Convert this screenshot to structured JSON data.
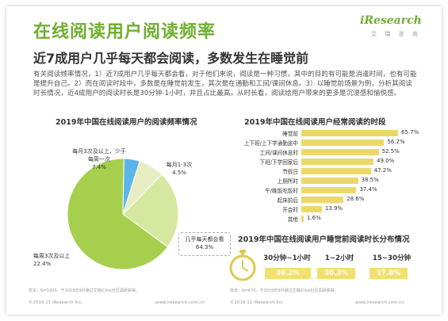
{
  "header": {
    "title": "在线阅读用户阅读频率",
    "subtitle": "近7成用户几乎每天都会阅读，多数发生在睡觉前",
    "logo_text": "iResearch",
    "logo_sub": "艾 瑞 咨 询"
  },
  "description": "有关阅读频率情况，1）近7成用户几乎每天都会看，对于他们来说，阅读是一种习惯，其中的目的有可能是消遣时间，也有可能是提升自己。2）而在阅读时段中，多数是在睡觉前发生，其次是在通勤和工间/课间休息。3）以睡觉前场景为例，分析其阅读时长情况，近4成用户的阅读时长是30分钟-1小时，并且占比最高，从时长看，阅读给用户带来的更多是沉浸感和愉悦感。",
  "left_footer": {
    "note": "样本：N=1000，于2019年9月通过艾瑞iClick社区调研获得。",
    "copyright": "©2019.11 iResearch Inc.",
    "site": "www.iresearch.com.cn"
  },
  "right_footer": {
    "note": "样本：N=670，于2019年9月通过艾瑞iClick社区调研获得。",
    "copyright": "©2019.11 iResearch Inc.",
    "site": "www.iresearch.com.cn"
  },
  "colors": {
    "title_green": "#6fae2e",
    "pie_main": "#a6cf4e",
    "pie_second": "#d6e8a0",
    "pie_third": "#e9edc4",
    "pie_fourth": "#5bb5e8",
    "bar_yellow": "#ecd86a"
  },
  "chart_data": [
    {
      "type": "pie",
      "title": "2019年中国在线阅读用户的阅读频率情况",
      "slices": [
        {
          "label": "几乎每天都会看",
          "value": 64.3,
          "display": "64.3%"
        },
        {
          "label": "每周3次及以上",
          "value": 22.4,
          "display": "22.4%"
        },
        {
          "label": "每月3次及以上，少于每周一次",
          "value": 7.4,
          "display": "7.4%"
        },
        {
          "label": "每月1-3次",
          "value": 4.5,
          "display": "4.5%"
        }
      ]
    },
    {
      "type": "bar",
      "orientation": "horizontal",
      "title": "2019年中国在线阅读用户经常阅读的时段",
      "categories": [
        "睡觉前",
        "上下班/上下学通勤途中",
        "工间/课间休息时",
        "下班/下学回家后",
        "节假日",
        "上厕所时",
        "午/晚饭吃饭时",
        "起床前后",
        "开会时",
        "其他"
      ],
      "values": [
        65.7,
        56.2,
        52.5,
        49.0,
        47.2,
        38.5,
        37.4,
        28.6,
        13.9,
        1.6
      ],
      "display": [
        "65.7%",
        "56.2%",
        "52.5%",
        "49.0%",
        "47.2%",
        "38.5%",
        "37.4%",
        "28.6%",
        "13.9%",
        "1.6%"
      ],
      "xlim": [
        0,
        70
      ]
    },
    {
      "type": "table",
      "title": "2019年中国在线阅读用户睡觉前阅读时长分布情况",
      "categories": [
        "30分钟~1小时",
        "1~2小时",
        "15~30分钟"
      ],
      "values": [
        39.2,
        30.3,
        17.8
      ],
      "display": [
        "39.2%",
        "30.3%",
        "17.8%"
      ]
    }
  ]
}
